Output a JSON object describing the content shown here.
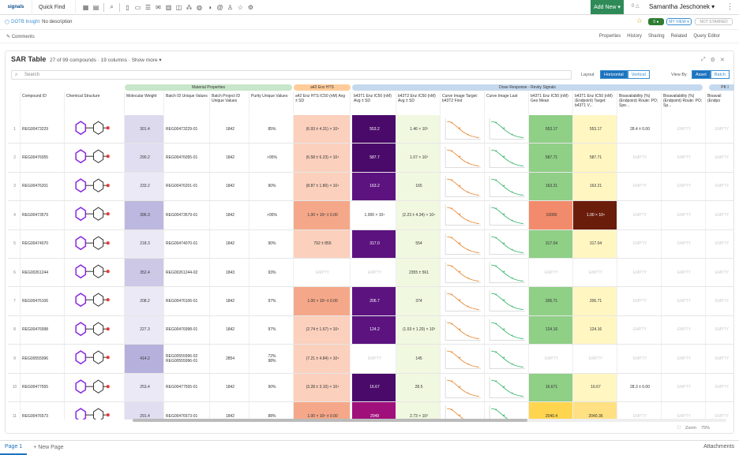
{
  "topbar": {
    "logo": "signals",
    "quickfind": "Quick Find",
    "addnew": "Add New ▾",
    "bell": "0 △",
    "user": "Samantha Jeschonek ▾",
    "menu": "⋮"
  },
  "subbar": {
    "title": "DOTB Insight",
    "desc": "No description",
    "chip1": "0 ●",
    "chip2": "MY VIEW ▾",
    "chip3": "NOT STARRED"
  },
  "actbar": {
    "comments": "Comments",
    "actions": [
      "Properties",
      "History",
      "Sharing",
      "Related",
      "Query Editor"
    ]
  },
  "sar": {
    "title": "SAR Table",
    "count": "27 of 99 compounds · 19 columns · Show more ▾",
    "search_placeholder": "Search",
    "layout_label": "Layout",
    "horizontal": "Horizontal",
    "vertical": "Vertical",
    "viewby_label": "View By",
    "asset": "Asset",
    "batch": "Batch"
  },
  "groups": [
    "Material Properties",
    "a42 Enz HTS",
    "Dose Response - Revity Signals",
    "PK I"
  ],
  "columns": [
    "Compound ID",
    "Chemical Structure",
    "Molecular Weight",
    "Batch ID Unique Values",
    "Batch Project ID Unique Values",
    "Purity Unique Values",
    "a42 Enz HTS IC50 (nM) Avg ± SD",
    "b43T1 Enz IC50 (nM) Avg ± SD",
    "b43T2 Enz IC50 (nM) Avg ± SD",
    "Curve Image Target: b43T2 First",
    "Curve Image Last",
    "b43T1 Enz IC50 (nM) Geo Mean",
    "b43T1 Enz IC50 (nM) (Endpoint) Target: b43T1 V...",
    "Bioavailability (%) (Endpoint) Route: PO; Spe...",
    "Bioavailability (%) (Endpoint) Route: PO; Sp...",
    "Bioavail (Endpo"
  ],
  "rows": [
    {
      "n": "1",
      "id": "REG00473229",
      "mw": "301.4",
      "batch": "REG00473229-01",
      "proj": "1842",
      "pur": "85%",
      "a42": "(6.93 ± 4.31) × 10⁴",
      "b1": "553.2",
      "b2": "1.46 × 10³",
      "geo": "553.17",
      "end": "553.17",
      "bio": "28.4 ± 0.00",
      "bio2": "EMPTY",
      "bio3": "EMPTY"
    },
    {
      "n": "2",
      "id": "REG00476055",
      "mw": "290.2",
      "batch": "REG00476055-01",
      "proj": "1842",
      "pur": ">95%",
      "a42": "(6.58 ± 6.23) × 10⁴",
      "b1": "587.7",
      "b2": "1.07 × 10³",
      "geo": "587.71",
      "end": "587.71",
      "bio": "EMPTY",
      "bio2": "EMPTY",
      "bio3": "EMPTY"
    },
    {
      "n": "3",
      "id": "REG00476201",
      "mw": "233.2",
      "batch": "REG00476201-01",
      "proj": "1842",
      "pur": "90%",
      "a42": "(8.87 ± 1.80) × 10⁴",
      "b1": "163.2",
      "b2": "165",
      "geo": "163.21",
      "end": "163.21",
      "bio": "EMPTY",
      "bio2": "EMPTY",
      "bio3": "EMPTY"
    },
    {
      "n": "4",
      "id": "REG00473579",
      "mw": "396.3",
      "batch": "REG00473579-01",
      "proj": "1842",
      "pur": ">95%",
      "a42": "1.00 × 10⁵ ± 0.00",
      "b1": "1.000 × 10⁴",
      "b2": "(2.23 ± 4.34) × 10⁴",
      "geo": "10000",
      "end": "1.00 × 10⁴",
      "bio": "EMPTY",
      "bio2": "EMPTY",
      "bio3": "EMPTY"
    },
    {
      "n": "5",
      "id": "REG00474070",
      "mw": "218.3",
      "batch": "REG00474070-01",
      "proj": "1842",
      "pur": "90%",
      "a42": "792 ± 855",
      "b1": "317.0",
      "b2": "554",
      "geo": "317.04",
      "end": "317.04",
      "bio": "EMPTY",
      "bio2": "EMPTY",
      "bio3": "EMPTY"
    },
    {
      "n": "6",
      "id": "REG00261244",
      "mw": "352.4",
      "batch": "REG00261244-02",
      "proj": "1843",
      "pur": "93%",
      "a42": "EMPTY",
      "b1": "EMPTY",
      "b2": "2355 ± 561",
      "geo": "EMPTY",
      "end": "EMPTY",
      "bio": "EMPTY",
      "bio2": "EMPTY",
      "bio3": "EMPTY"
    },
    {
      "n": "7",
      "id": "REG00476106",
      "mw": "208.2",
      "batch": "REG00476106-01",
      "proj": "1842",
      "pur": "97%",
      "a42": "1.00 × 10⁵ ± 0.00",
      "b1": "206.7",
      "b2": "374",
      "geo": "206.71",
      "end": "206.71",
      "bio": "EMPTY",
      "bio2": "EMPTY",
      "bio3": "EMPTY"
    },
    {
      "n": "8",
      "id": "REG00476998",
      "mw": "227.3",
      "batch": "REG00476998-01",
      "proj": "1842",
      "pur": "97%",
      "a42": "(2.74 ± 1.67) × 10⁴",
      "b1": "124.2",
      "b2": "(1.53 ± 1.20) × 10³",
      "geo": "124.16",
      "end": "124.16",
      "bio": "EMPTY",
      "bio2": "EMPTY",
      "bio3": "EMPTY"
    },
    {
      "n": "9",
      "id": "REG00555996",
      "mw": "414.2",
      "batch": "REG00555996-02\nREG00555996-01",
      "proj": "2854",
      "pur": "72%\n98%",
      "a42": "(7.21 ± 4.84) × 10⁴",
      "b1": "EMPTY",
      "b2": "145",
      "geo": "EMPTY",
      "end": "EMPTY",
      "bio": "EMPTY",
      "bio2": "EMPTY",
      "bio3": "EMPTY"
    },
    {
      "n": "10",
      "id": "REG00477555",
      "mw": "253.4",
      "batch": "REG00477555-01",
      "proj": "1842",
      "pur": "90%",
      "a42": "(3.28 ± 3.10) × 10⁴",
      "b1": "16.67",
      "b2": "28.5",
      "geo": "16.671",
      "end": "16.67",
      "bio": "28.3 ± 0.00",
      "bio2": "EMPTY",
      "bio3": "EMPTY"
    },
    {
      "n": "11",
      "id": "REG00476573",
      "mw": "291.4",
      "batch": "REG00476573-01",
      "proj": "1842",
      "pur": "88%",
      "a42": "1.00 × 10⁵ ± 0.00",
      "b1": "2049",
      "b2": "2.73 × 10³",
      "geo": "2040.4",
      "end": "2040.36",
      "bio": "EMPTY",
      "bio2": "EMPTY",
      "bio3": "EMPTY"
    }
  ],
  "zoom": {
    "label": "Zoom",
    "value": "75%"
  },
  "bottom": {
    "page": "Page 1",
    "newpage": "+ New Page",
    "attach": "Attachments"
  }
}
